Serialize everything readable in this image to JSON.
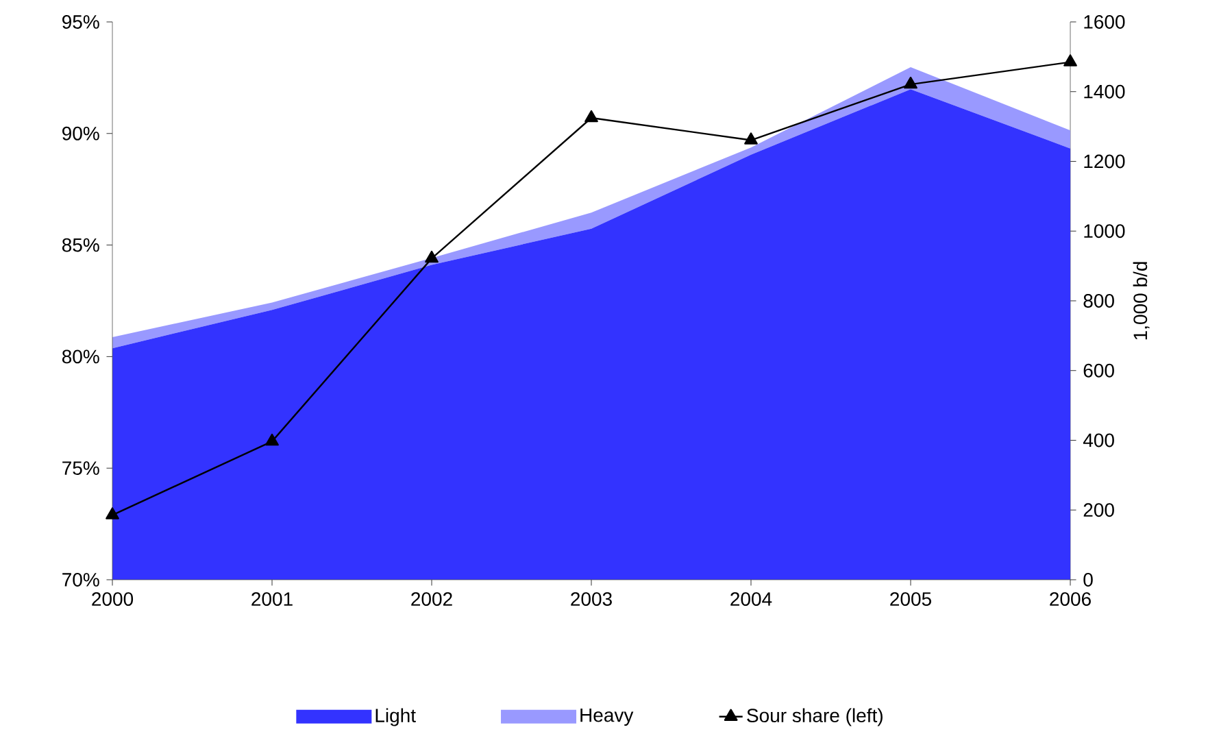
{
  "chart_data": {
    "type": "area",
    "x": [
      2000,
      2001,
      2002,
      2003,
      2004,
      2005,
      2006
    ],
    "stacked": true,
    "y2label": "1,000 b/d",
    "xlim": [
      2000,
      2006
    ],
    "xticks": [
      2000,
      2001,
      2002,
      2003,
      2004,
      2005,
      2006
    ],
    "ylim": [
      70,
      95
    ],
    "yticks": [
      {
        "value": 70,
        "label": "70%"
      },
      {
        "value": 75,
        "label": "75%"
      },
      {
        "value": 80,
        "label": "80%"
      },
      {
        "value": 85,
        "label": "85%"
      },
      {
        "value": 90,
        "label": "90%"
      },
      {
        "value": 95,
        "label": "95%"
      }
    ],
    "y2lim": [
      0,
      1600
    ],
    "y2ticks": [
      0,
      200,
      400,
      600,
      800,
      1000,
      1200,
      1400,
      1600
    ],
    "series": [
      {
        "name": "Light",
        "axis": "y2",
        "color": "#3333ff",
        "values": [
          664,
          774,
          903,
          1007,
          1219,
          1407,
          1237
        ]
      },
      {
        "name": "Heavy",
        "axis": "y2",
        "color": "#9999ff",
        "values": [
          32,
          21,
          20,
          46,
          21,
          63,
          52
        ]
      },
      {
        "name": "Sour share (left)",
        "type": "line",
        "color": "#000000",
        "marker": "triangle",
        "values": [
          72.9,
          76.2,
          84.4,
          90.7,
          89.7,
          92.2,
          93.2
        ]
      }
    ],
    "grid": false,
    "legend": "bottom"
  }
}
